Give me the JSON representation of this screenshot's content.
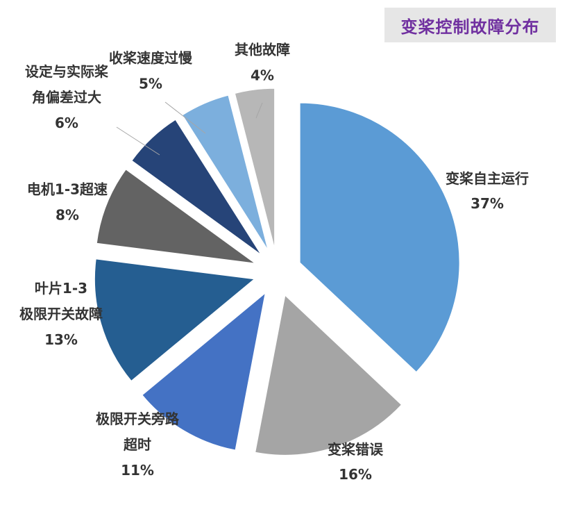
{
  "chart_data": {
    "type": "pie",
    "title": "变桨控制故障分布",
    "exploded": true,
    "slices": [
      {
        "label_lines": [
          "变桨自主运行"
        ],
        "value": 37,
        "pct_text": "37%",
        "color": "#5b9bd5"
      },
      {
        "label_lines": [
          "变桨错误"
        ],
        "value": 16,
        "pct_text": "16%",
        "color": "#a5a5a5"
      },
      {
        "label_lines": [
          "极限开关旁路",
          "超时"
        ],
        "value": 11,
        "pct_text": "11%",
        "color": "#4472c4"
      },
      {
        "label_lines": [
          "叶片1-3",
          "极限开关故障"
        ],
        "value": 13,
        "pct_text": "13%",
        "color": "#255e91"
      },
      {
        "label_lines": [
          "电机1-3超速"
        ],
        "value": 8,
        "pct_text": "8%",
        "color": "#636363"
      },
      {
        "label_lines": [
          "设定与实际桨",
          "角偏差过大"
        ],
        "value": 6,
        "pct_text": "6%",
        "color": "#264478"
      },
      {
        "label_lines": [
          "收桨速度过慢"
        ],
        "value": 5,
        "pct_text": "5%",
        "color": "#7cafdd"
      },
      {
        "label_lines": [
          "其他故障"
        ],
        "value": 4,
        "pct_text": "4%",
        "color": "#b7b7b7"
      }
    ]
  }
}
